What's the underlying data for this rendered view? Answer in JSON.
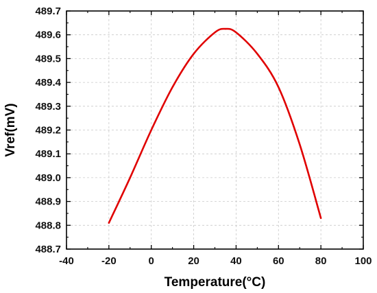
{
  "chart_data": {
    "type": "line",
    "title": "",
    "xlabel": "Temperature(°C)",
    "ylabel": "Vref(mV)",
    "xlim": [
      -40,
      100
    ],
    "ylim": [
      488.7,
      489.7
    ],
    "xticks": [
      -40,
      -20,
      0,
      20,
      40,
      60,
      80,
      100
    ],
    "xtick_labels": [
      "-40",
      "-20",
      "0",
      "20",
      "40",
      "60",
      "80",
      "100"
    ],
    "yticks": [
      488.7,
      488.8,
      488.9,
      489.0,
      489.1,
      489.2,
      489.3,
      489.4,
      489.5,
      489.6,
      489.7
    ],
    "ytick_labels": [
      "488.7",
      "488.8",
      "488.9",
      "489.0",
      "489.1",
      "489.2",
      "489.3",
      "489.4",
      "489.5",
      "489.6",
      "489.7"
    ],
    "grid": true,
    "series": [
      {
        "color": "#e00000",
        "x": [
          -20,
          -10,
          0,
          10,
          20,
          30,
          35,
          40,
          50,
          60,
          70,
          80
        ],
        "y": [
          488.81,
          489.0,
          489.2,
          489.38,
          489.52,
          489.61,
          489.625,
          489.61,
          489.52,
          489.38,
          489.14,
          488.83
        ]
      }
    ]
  }
}
